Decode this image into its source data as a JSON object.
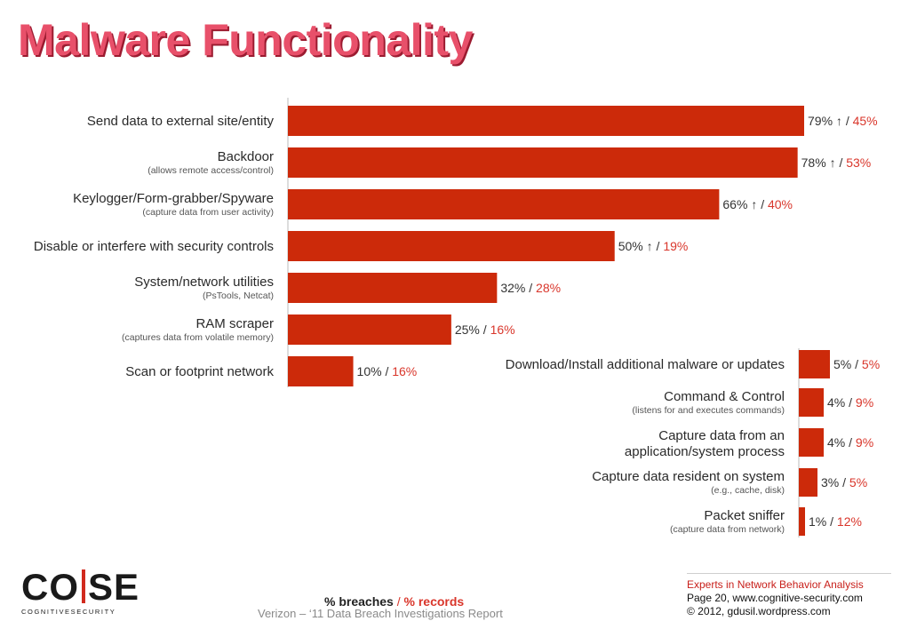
{
  "title": "Malware Functionality",
  "chart_data": {
    "type": "bar",
    "orientation": "horizontal",
    "title": "Malware Functionality",
    "legend": "% breaches / % records",
    "series": [
      {
        "name": "% breaches",
        "color": "#cc2a0a"
      },
      {
        "name": "% records",
        "color": "#d9362b"
      }
    ],
    "xlim": [
      0,
      100
    ],
    "items": [
      {
        "label": "Send data to external site/entity",
        "sublabel": "",
        "breaches": 79,
        "records": 45,
        "delta": "↑"
      },
      {
        "label": "Backdoor",
        "sublabel": "(allows remote access/control)",
        "breaches": 78,
        "records": 53,
        "delta": "↑"
      },
      {
        "label": "Keylogger/Form-grabber/Spyware",
        "sublabel": "(capture data from user activity)",
        "breaches": 66,
        "records": 40,
        "delta": "↑"
      },
      {
        "label": "Disable or interfere with security controls",
        "sublabel": "",
        "breaches": 50,
        "records": 19,
        "delta": "↑"
      },
      {
        "label": "System/network utilities",
        "sublabel": "(PsTools, Netcat)",
        "breaches": 32,
        "records": 28,
        "delta": ""
      },
      {
        "label": "RAM scraper",
        "sublabel": "(captures data from volatile memory)",
        "breaches": 25,
        "records": 16,
        "delta": ""
      },
      {
        "label": "Scan or footprint network",
        "sublabel": "",
        "breaches": 10,
        "records": 16,
        "delta": ""
      },
      {
        "label": "Download/Install additional malware or updates",
        "sublabel": "",
        "breaches": 5,
        "records": 5,
        "delta": ""
      },
      {
        "label": "Command & Control",
        "sublabel": "(listens for and executes commands)",
        "breaches": 4,
        "records": 9,
        "delta": ""
      },
      {
        "label": "Capture data from an application/system process",
        "sublabel": "",
        "breaches": 4,
        "records": 9,
        "delta": ""
      },
      {
        "label": "Capture data resident on system",
        "sublabel": "(e.g., cache, disk)",
        "breaches": 3,
        "records": 5,
        "delta": ""
      },
      {
        "label": "Packet sniffer",
        "sublabel": "(capture data from network)",
        "breaches": 1,
        "records": 12,
        "delta": ""
      }
    ]
  },
  "legend": {
    "breaches": "% breaches",
    "slash": "/",
    "records": "% records"
  },
  "source": "Verizon – ‘11 Data Breach Investigations Report",
  "logo": {
    "text": "COSE",
    "tagline": "COGNITIVESECURITY"
  },
  "footer": {
    "tagline": "Experts in Network Behavior Analysis",
    "page": "Page 20, www.cognitive-security.com",
    "copyright": "© 2012, gdusil.wordpress.com"
  }
}
